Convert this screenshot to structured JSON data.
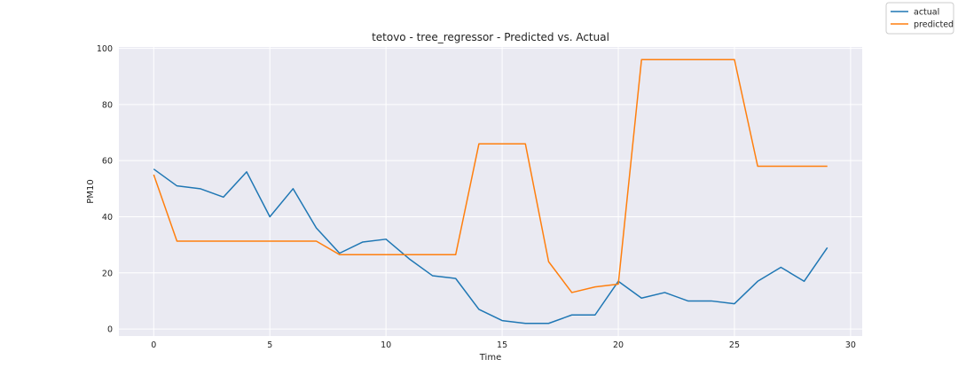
{
  "chart_data": {
    "type": "line",
    "title": "tetovo - tree_regressor - Predicted vs. Actual",
    "xlabel": "Time",
    "ylabel": "PM10",
    "xlim": [
      -1.5,
      30.5
    ],
    "ylim": [
      -2.5,
      100.5
    ],
    "xticks": [
      0,
      5,
      10,
      15,
      20,
      25,
      30
    ],
    "yticks": [
      0,
      20,
      40,
      60,
      80,
      100
    ],
    "grid": true,
    "legend_position": "top-right",
    "x": [
      0,
      1,
      2,
      3,
      4,
      5,
      6,
      7,
      8,
      9,
      10,
      11,
      12,
      13,
      14,
      15,
      16,
      17,
      18,
      19,
      20,
      21,
      22,
      23,
      24,
      25,
      26,
      27,
      28,
      29
    ],
    "series": [
      {
        "name": "actual",
        "color": "#1f77b4",
        "values": [
          57,
          51,
          50,
          47,
          56,
          40,
          50,
          36,
          27,
          31,
          32,
          25,
          19,
          18,
          7,
          3,
          2,
          2,
          5,
          5,
          17,
          11,
          13,
          10,
          10,
          9,
          17,
          22,
          17,
          29
        ]
      },
      {
        "name": "predicted",
        "color": "#ff7f0e",
        "values": [
          55,
          31.3,
          31.3,
          31.3,
          31.3,
          31.3,
          31.3,
          31.3,
          26.5,
          26.5,
          26.5,
          26.5,
          26.5,
          26.5,
          66,
          66,
          66,
          24,
          13,
          15,
          16,
          96,
          96,
          96,
          96,
          96,
          58,
          58,
          58,
          58
        ]
      }
    ]
  }
}
